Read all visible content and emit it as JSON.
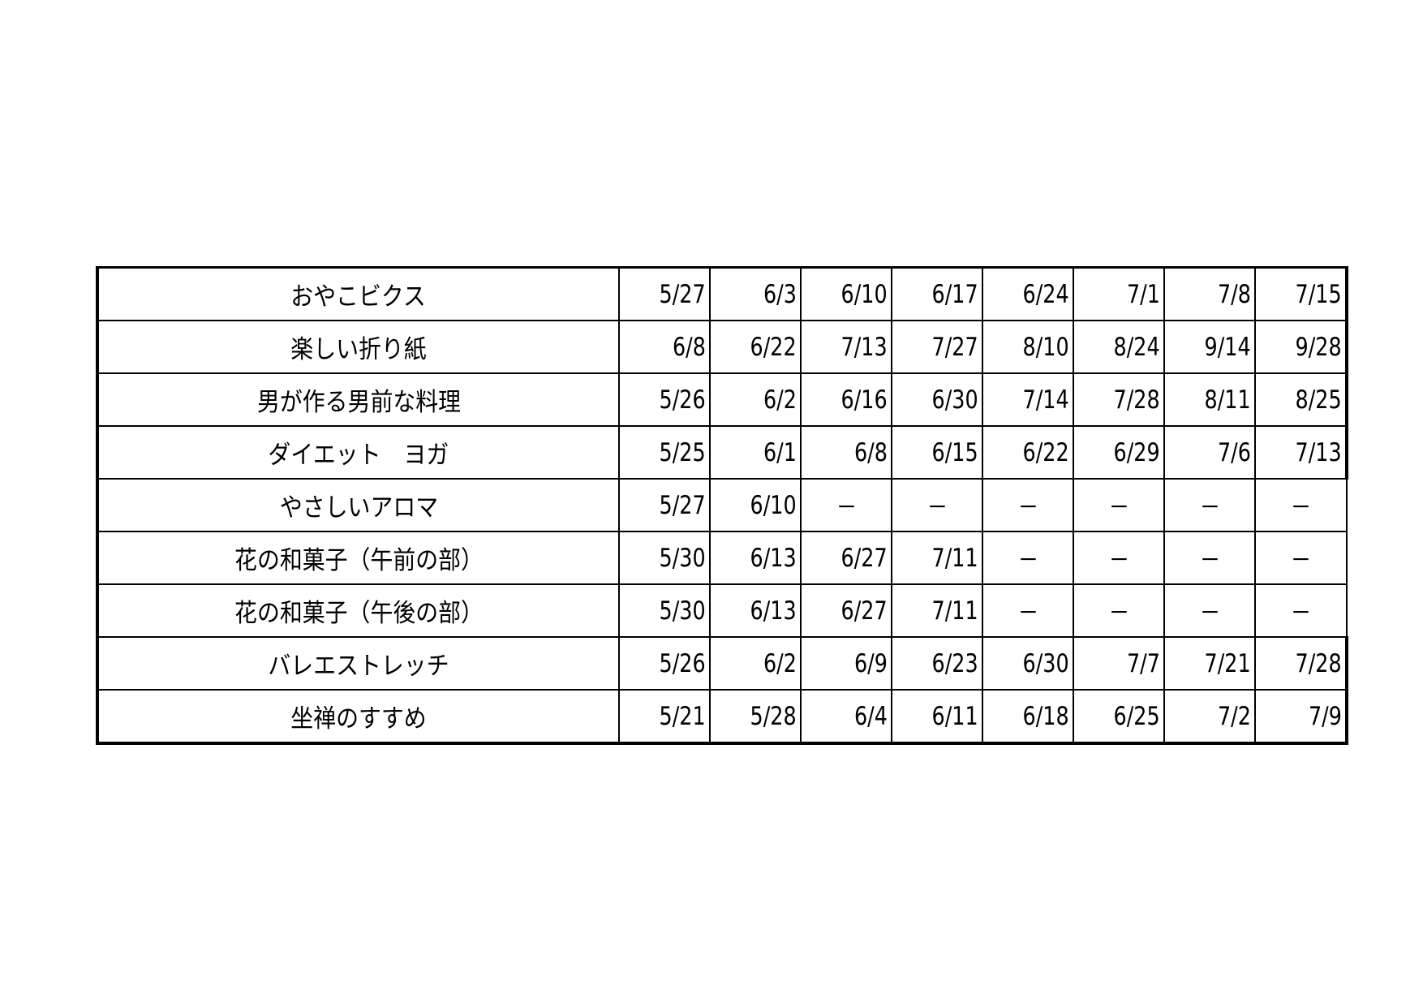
{
  "table": {
    "rows": [
      {
        "name": "おやこビクス",
        "dates": [
          "5/27",
          "6/3",
          "6/10",
          "6/17",
          "6/24",
          "7/1",
          "7/8",
          "7/15"
        ],
        "right_border": "thick"
      },
      {
        "name": "楽しい折り紙",
        "dates": [
          "6/8",
          "6/22",
          "7/13",
          "7/27",
          "8/10",
          "8/24",
          "9/14",
          "9/28"
        ],
        "right_border": "thick"
      },
      {
        "name": "男が作る男前な料理",
        "dates": [
          "5/26",
          "6/2",
          "6/16",
          "6/30",
          "7/14",
          "7/28",
          "8/11",
          "8/25"
        ],
        "right_border": "thick"
      },
      {
        "name": "ダイエット　ヨガ",
        "dates": [
          "5/25",
          "6/1",
          "6/8",
          "6/15",
          "6/22",
          "6/29",
          "7/6",
          "7/13"
        ],
        "right_border": "thick"
      },
      {
        "name": "やさしいアロマ",
        "dates": [
          "5/27",
          "6/10",
          "－",
          "－",
          "－",
          "－",
          "－",
          "－"
        ],
        "right_border": "thin"
      },
      {
        "name": "花の和菓子（午前の部）",
        "dates": [
          "5/30",
          "6/13",
          "6/27",
          "7/11",
          "－",
          "－",
          "－",
          "－"
        ],
        "right_border": "thin"
      },
      {
        "name": "花の和菓子（午後の部）",
        "dates": [
          "5/30",
          "6/13",
          "6/27",
          "7/11",
          "－",
          "－",
          "－",
          "－"
        ],
        "right_border": "thin"
      },
      {
        "name": "バレエストレッチ",
        "dates": [
          "5/26",
          "6/2",
          "6/9",
          "6/23",
          "6/30",
          "7/7",
          "7/21",
          "7/28"
        ],
        "right_border": "thick"
      },
      {
        "name": "坐禅のすすめ",
        "dates": [
          "5/21",
          "5/28",
          "6/4",
          "6/11",
          "6/18",
          "6/25",
          "7/2",
          "7/9"
        ],
        "right_border": "thick"
      }
    ]
  }
}
